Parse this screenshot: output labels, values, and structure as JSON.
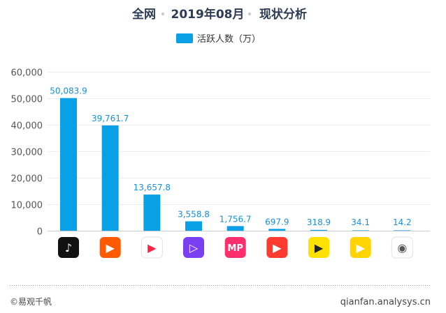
{
  "header": {
    "scope": "全网",
    "period": "2019年08月",
    "analysis": "现状分析",
    "separator": "•"
  },
  "legend": {
    "label": "活跃人数（万）",
    "color": "#0aa0e6"
  },
  "footer": {
    "left": "©易观千帆",
    "right": "qianfan.analysys.cn"
  },
  "chart_data": {
    "type": "bar",
    "title": "全网 • 2019年08月 • 现状分析",
    "ylim": [
      0,
      60000
    ],
    "yticks": [
      0,
      10000,
      20000,
      30000,
      40000,
      50000,
      60000
    ],
    "ytick_labels": [
      "0",
      "10,000",
      "20,000",
      "30,000",
      "40,000",
      "50,000",
      "60,000"
    ],
    "grid": true,
    "legend_position": "top-center",
    "categories": [
      "tiktok-icon",
      "kuaishou-icon",
      "app-3-icon",
      "app-4-icon",
      "app-5-icon",
      "app-6-icon",
      "app-7-icon",
      "app-8-icon",
      "app-9-icon"
    ],
    "series": [
      {
        "name": "活跃人数（万）",
        "color": "#0aa0e6",
        "values": [
          50083.9,
          39761.7,
          13657.8,
          3558.8,
          1756.7,
          697.9,
          318.9,
          34.1,
          14.2
        ],
        "labels": [
          "50,083.9",
          "39,761.7",
          "13,657.8",
          "3,558.8",
          "1,756.7",
          "697.9",
          "318.9",
          "34.1",
          "14.2"
        ]
      }
    ],
    "icons": [
      {
        "name": "tiktok-icon",
        "bg": "#111111",
        "fg": "#ffffff",
        "glyph": "♪"
      },
      {
        "name": "kuaishou-icon",
        "bg": "#ff5a00",
        "fg": "#ffffff",
        "glyph": "▶"
      },
      {
        "name": "red-play-icon",
        "bg": "#ffffff",
        "fg": "#ff2442",
        "glyph": "▶"
      },
      {
        "name": "purple-play-icon",
        "bg": "#7b3ff2",
        "fg": "#ffffff",
        "glyph": "▷"
      },
      {
        "name": "mp-icon",
        "bg": "#ff2e6d",
        "fg": "#ffffff",
        "glyph": "MP"
      },
      {
        "name": "red-tv-icon",
        "bg": "#ff3b30",
        "fg": "#ffffff",
        "glyph": "▶"
      },
      {
        "name": "yellow-play-icon",
        "bg": "#ffe100",
        "fg": "#222222",
        "glyph": "▶"
      },
      {
        "name": "pear-icon",
        "bg": "#ffd400",
        "fg": "#ffffff",
        "glyph": "▶"
      },
      {
        "name": "gray-eye-icon",
        "bg": "#ffffff",
        "fg": "#555555",
        "glyph": "◉"
      }
    ]
  }
}
